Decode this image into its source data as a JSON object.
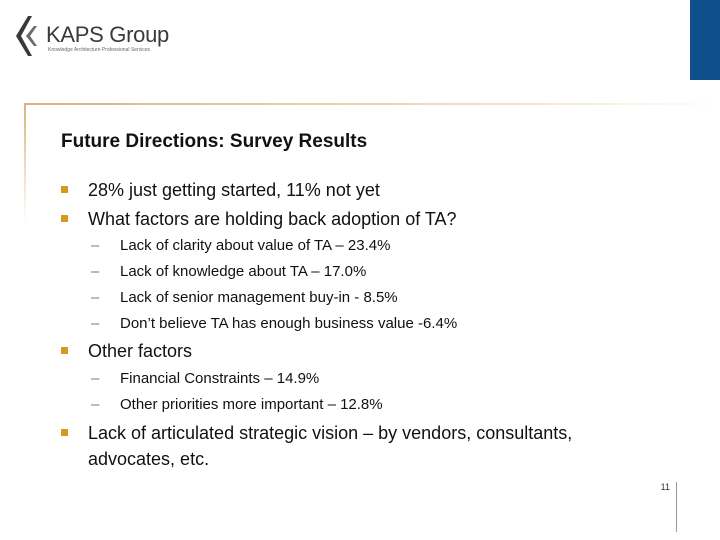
{
  "logo": {
    "name": "KAPS Group",
    "tagline": "Knowledge Architecture Professional Services",
    "brand_color": "#0f4f8c"
  },
  "slide": {
    "title": "Future Directions: Survey Results",
    "bullets": [
      {
        "text": "28% just getting started, 11% not yet",
        "subs": []
      },
      {
        "text": "What factors are holding back adoption of TA?",
        "subs": [
          "Lack of clarity about value of TA – 23.4%",
          "Lack of knowledge about TA – 17.0%",
          "Lack of senior management buy-in - 8.5%",
          "Don’t believe TA has enough business value -6.4%"
        ]
      },
      {
        "text": "Other factors",
        "subs": [
          "Financial Constraints – 14.9%",
          "Other priorities more important – 12.8%"
        ]
      },
      {
        "text": "Lack of articulated strategic vision – by vendors, consultants,",
        "text_line2": "advocates, etc.",
        "subs": []
      }
    ],
    "dash": "–",
    "bullet_color": "#d89a1e",
    "page_number": "11"
  }
}
